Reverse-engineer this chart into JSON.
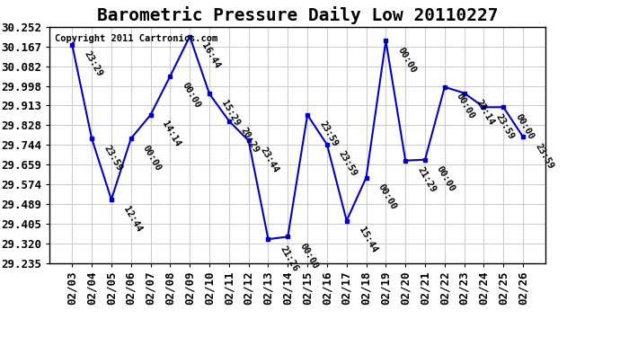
{
  "title": "Barometric Pressure Daily Low 20110227",
  "copyright": "Copyright 2011 Cartronics.com",
  "x_labels": [
    "02/03",
    "02/04",
    "02/05",
    "02/06",
    "02/07",
    "02/08",
    "02/09",
    "02/10",
    "02/11",
    "02/12",
    "02/13",
    "02/14",
    "02/15",
    "02/16",
    "02/17",
    "02/18",
    "02/19",
    "02/20",
    "02/21",
    "02/22",
    "02/23",
    "02/24",
    "02/25",
    "02/26"
  ],
  "y_values": [
    30.175,
    29.771,
    29.508,
    29.771,
    29.873,
    30.04,
    30.211,
    29.964,
    29.847,
    29.762,
    29.337,
    29.348,
    29.873,
    29.745,
    29.417,
    29.603,
    30.193,
    29.676,
    29.68,
    29.993,
    29.967,
    29.906,
    29.906,
    29.778
  ],
  "time_labels": [
    "23:29",
    "23:59",
    "12:44",
    "00:00",
    "14:14",
    "00:00",
    "16:44",
    "15:29",
    "20:29",
    "23:44",
    "21:26",
    "00:00",
    "23:59",
    "23:59",
    "15:44",
    "00:00",
    "00:00",
    "21:29",
    "00:00",
    "00:00",
    "23:14",
    "23:59",
    "00:00",
    "23:59"
  ],
  "y_min": 29.235,
  "y_max": 30.252,
  "y_ticks": [
    29.235,
    29.32,
    29.405,
    29.489,
    29.574,
    29.659,
    29.744,
    29.828,
    29.913,
    29.998,
    30.082,
    30.167,
    30.252
  ],
  "line_color": "#0000CC",
  "marker_color": "#0000CC",
  "bg_color": "#FFFFFF",
  "grid_color": "#CCCCCC",
  "title_fontsize": 14,
  "label_fontsize": 9,
  "annotation_fontsize": 7.5
}
